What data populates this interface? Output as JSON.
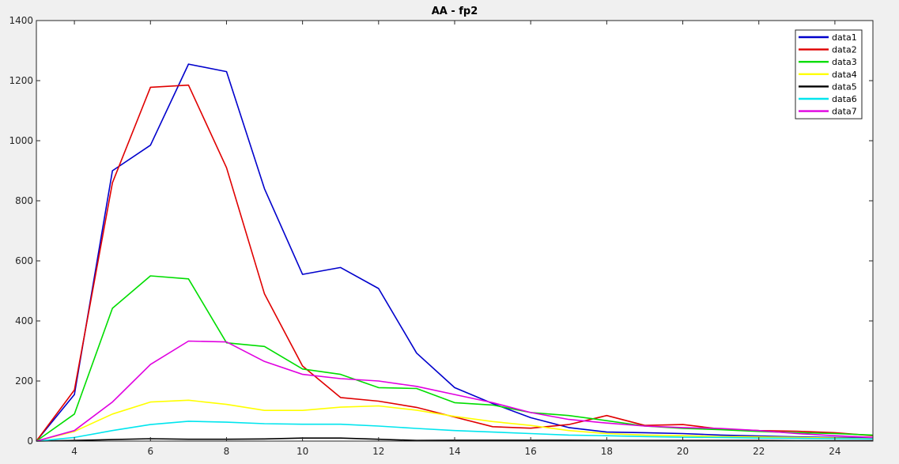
{
  "chart_data": {
    "type": "line",
    "title": "AA - fp2",
    "xlabel": "",
    "ylabel": "",
    "xlim": [
      3,
      25
    ],
    "ylim": [
      0,
      1400
    ],
    "xticks": [
      4,
      6,
      8,
      10,
      12,
      14,
      16,
      18,
      20,
      22,
      24
    ],
    "yticks": [
      0,
      200,
      400,
      600,
      800,
      1000,
      1200,
      1400
    ],
    "grid": false,
    "legend_position": "top-right",
    "x": [
      3,
      4,
      5,
      6,
      7,
      8,
      9,
      10,
      11,
      12,
      13,
      14,
      15,
      16,
      17,
      18,
      19,
      20,
      21,
      22,
      23,
      24,
      25
    ],
    "series": [
      {
        "name": "data1",
        "color": "#0000cc",
        "values": [
          0,
          155,
          900,
          985,
          1255,
          1230,
          840,
          555,
          578,
          508,
          293,
          178,
          125,
          78,
          45,
          30,
          28,
          25,
          20,
          17,
          14,
          12,
          10
        ]
      },
      {
        "name": "data2",
        "color": "#e00000",
        "values": [
          0,
          170,
          860,
          1178,
          1185,
          910,
          490,
          250,
          145,
          133,
          112,
          80,
          48,
          43,
          55,
          85,
          52,
          55,
          40,
          35,
          33,
          28,
          18
        ]
      },
      {
        "name": "data3",
        "color": "#00dd00",
        "values": [
          0,
          90,
          442,
          550,
          540,
          327,
          315,
          240,
          222,
          178,
          175,
          128,
          120,
          95,
          85,
          68,
          50,
          42,
          38,
          32,
          28,
          25,
          20
        ]
      },
      {
        "name": "data4",
        "color": "#ffff00",
        "values": [
          0,
          32,
          90,
          130,
          136,
          122,
          102,
          102,
          113,
          117,
          103,
          82,
          65,
          52,
          35,
          25,
          20,
          18,
          15,
          14,
          12,
          10,
          8
        ]
      },
      {
        "name": "data5",
        "color": "#000000",
        "values": [
          0,
          2,
          5,
          8,
          6,
          6,
          7,
          10,
          10,
          6,
          2,
          3,
          3,
          3,
          3,
          2,
          2,
          2,
          2,
          2,
          1,
          1,
          1
        ]
      },
      {
        "name": "data6",
        "color": "#00e5ee",
        "values": [
          0,
          12,
          35,
          55,
          66,
          63,
          58,
          56,
          56,
          50,
          42,
          35,
          30,
          25,
          20,
          18,
          15,
          13,
          12,
          10,
          9,
          8,
          7
        ]
      },
      {
        "name": "data7",
        "color": "#e000e0",
        "values": [
          0,
          35,
          130,
          255,
          333,
          330,
          265,
          222,
          208,
          200,
          182,
          155,
          128,
          95,
          72,
          60,
          50,
          45,
          42,
          35,
          25,
          18,
          12
        ]
      }
    ]
  }
}
